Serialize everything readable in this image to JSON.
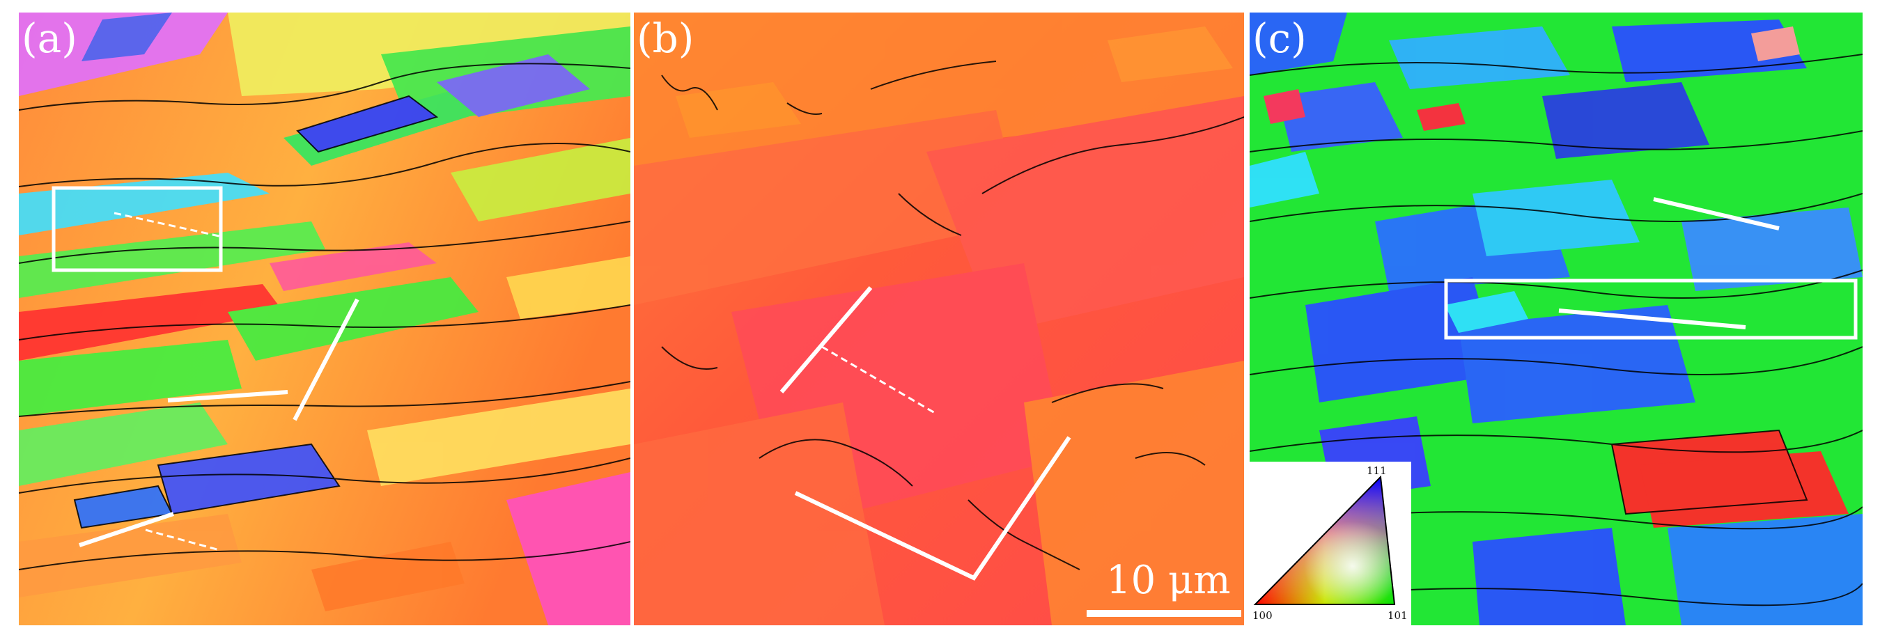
{
  "panels": [
    {
      "label": "(a)"
    },
    {
      "label": "(b)"
    },
    {
      "label": "(c)"
    }
  ],
  "scale_bar": {
    "label": "10 μm"
  },
  "ipf_key": {
    "label_top": "111",
    "label_left": "100",
    "label_right": "101"
  },
  "colors": {
    "red_100": "#ff2a2a",
    "green_101": "#22e635",
    "blue_111": "#2a5cff",
    "orange": "#ff8a2a",
    "grain_boundary": "#000000",
    "annotation": "#ffffff"
  }
}
